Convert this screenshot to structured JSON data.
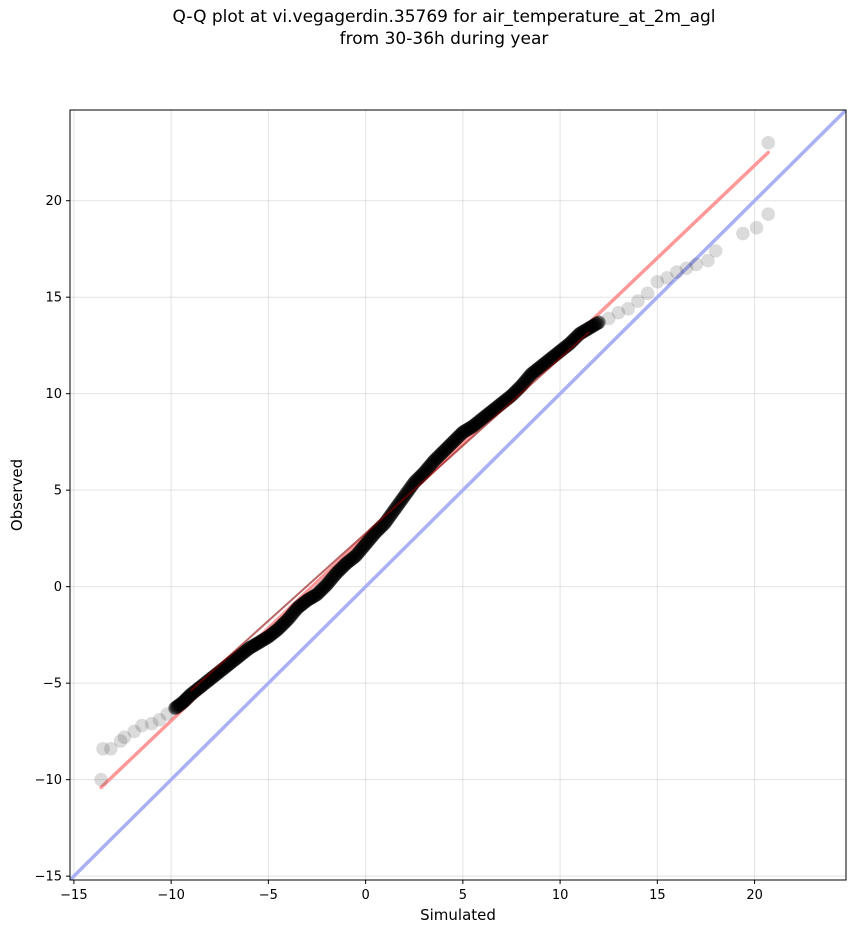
{
  "chart_data": {
    "type": "scatter",
    "title": [
      "Q-Q plot at vi.vegagerdin.35769 for air_temperature_at_2m_agl",
      "from 30-36h during year"
    ],
    "xlabel": "Simulated",
    "ylabel": "Observed",
    "xlim": [
      -15.2,
      24.7
    ],
    "ylim": [
      -15.2,
      24.7
    ],
    "xticks": [
      -15,
      -10,
      -5,
      0,
      5,
      10,
      15,
      20
    ],
    "yticks": [
      -15,
      -10,
      -5,
      0,
      5,
      10,
      15,
      20
    ],
    "xtick_labels": [
      "−15",
      "−10",
      "−5",
      "0",
      "5",
      "10",
      "15",
      "20"
    ],
    "ytick_labels": [
      "−15",
      "−10",
      "−5",
      "0",
      "5",
      "10",
      "15",
      "20"
    ],
    "grid": true,
    "quantile_points": [
      {
        "x": -13.6,
        "y": -10.0
      },
      {
        "x": -13.5,
        "y": -8.4
      },
      {
        "x": -13.1,
        "y": -8.4
      },
      {
        "x": -12.6,
        "y": -8.0
      },
      {
        "x": -12.4,
        "y": -7.8
      },
      {
        "x": -11.9,
        "y": -7.5
      },
      {
        "x": -11.5,
        "y": -7.2
      },
      {
        "x": -11.0,
        "y": -7.1
      },
      {
        "x": -10.6,
        "y": -6.9
      },
      {
        "x": -10.2,
        "y": -6.6
      },
      {
        "x": -9.8,
        "y": -6.3
      },
      {
        "x": -9.4,
        "y": -6.0
      },
      {
        "x": -9.0,
        "y": -5.6
      },
      {
        "x": -8.5,
        "y": -5.2
      },
      {
        "x": -8.0,
        "y": -4.8
      },
      {
        "x": -7.5,
        "y": -4.4
      },
      {
        "x": -7.0,
        "y": -4.0
      },
      {
        "x": -6.5,
        "y": -3.6
      },
      {
        "x": -6.0,
        "y": -3.2
      },
      {
        "x": -5.5,
        "y": -2.9
      },
      {
        "x": -5.0,
        "y": -2.6
      },
      {
        "x": -4.5,
        "y": -2.2
      },
      {
        "x": -4.0,
        "y": -1.7
      },
      {
        "x": -3.5,
        "y": -1.1
      },
      {
        "x": -3.0,
        "y": -0.7
      },
      {
        "x": -2.5,
        "y": -0.4
      },
      {
        "x": -2.0,
        "y": 0.1
      },
      {
        "x": -1.5,
        "y": 0.7
      },
      {
        "x": -1.0,
        "y": 1.2
      },
      {
        "x": -0.5,
        "y": 1.6
      },
      {
        "x": 0.0,
        "y": 2.2
      },
      {
        "x": 0.5,
        "y": 2.8
      },
      {
        "x": 1.0,
        "y": 3.3
      },
      {
        "x": 1.5,
        "y": 4.0
      },
      {
        "x": 2.0,
        "y": 4.7
      },
      {
        "x": 2.5,
        "y": 5.4
      },
      {
        "x": 3.0,
        "y": 5.9
      },
      {
        "x": 3.5,
        "y": 6.5
      },
      {
        "x": 4.0,
        "y": 7.0
      },
      {
        "x": 4.5,
        "y": 7.5
      },
      {
        "x": 5.0,
        "y": 8.0
      },
      {
        "x": 5.5,
        "y": 8.3
      },
      {
        "x": 6.0,
        "y": 8.7
      },
      {
        "x": 6.5,
        "y": 9.1
      },
      {
        "x": 7.0,
        "y": 9.5
      },
      {
        "x": 7.5,
        "y": 9.9
      },
      {
        "x": 8.0,
        "y": 10.4
      },
      {
        "x": 8.5,
        "y": 11.0
      },
      {
        "x": 9.0,
        "y": 11.4
      },
      {
        "x": 9.5,
        "y": 11.8
      },
      {
        "x": 10.0,
        "y": 12.2
      },
      {
        "x": 10.5,
        "y": 12.6
      },
      {
        "x": 11.0,
        "y": 13.1
      },
      {
        "x": 11.5,
        "y": 13.4
      },
      {
        "x": 12.0,
        "y": 13.7
      },
      {
        "x": 12.5,
        "y": 13.9
      },
      {
        "x": 13.0,
        "y": 14.2
      },
      {
        "x": 13.5,
        "y": 14.4
      },
      {
        "x": 14.0,
        "y": 14.8
      },
      {
        "x": 14.5,
        "y": 15.2
      },
      {
        "x": 15.0,
        "y": 15.8
      },
      {
        "x": 15.5,
        "y": 16.0
      },
      {
        "x": 16.0,
        "y": 16.3
      },
      {
        "x": 16.5,
        "y": 16.5
      },
      {
        "x": 17.0,
        "y": 16.7
      },
      {
        "x": 17.6,
        "y": 16.9
      },
      {
        "x": 18.0,
        "y": 17.4
      },
      {
        "x": 19.4,
        "y": 18.3
      },
      {
        "x": 20.1,
        "y": 18.6
      },
      {
        "x": 20.7,
        "y": 19.3
      },
      {
        "x": 20.7,
        "y": 23.0
      }
    ],
    "reference_lines": [
      {
        "kind": "fit",
        "color": "#ff9999",
        "x": [
          -13.6,
          20.7
        ],
        "y": [
          -10.4,
          22.5
        ]
      },
      {
        "kind": "identity",
        "color": "#aab0f5",
        "x": [
          -15.2,
          24.7
        ],
        "y": [
          -15.2,
          24.7
        ]
      }
    ],
    "marker_color": "#000000"
  }
}
